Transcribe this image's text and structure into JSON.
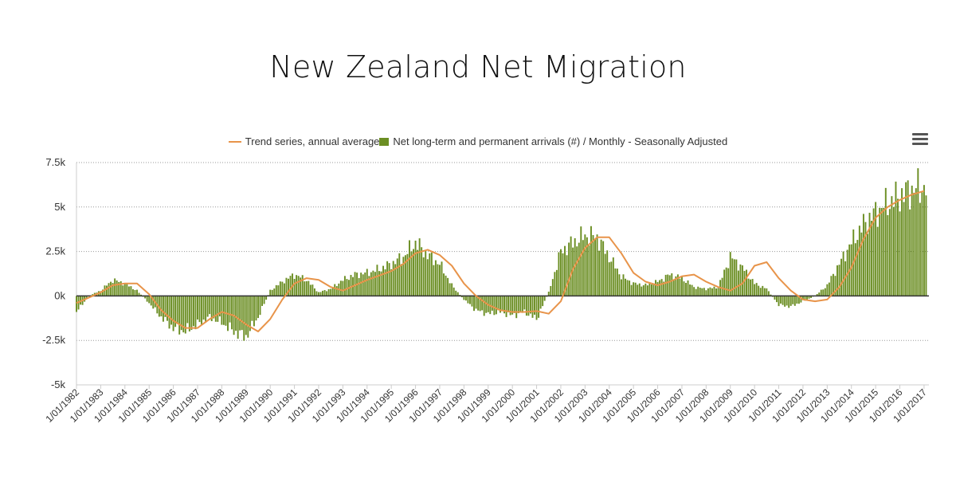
{
  "chart_data": {
    "type": "bar",
    "title": "New Zealand Net Migration",
    "legend": {
      "placement": "top-center",
      "entries": [
        {
          "name": "Trend series, annual average",
          "kind": "line",
          "color": "#e8944a"
        },
        {
          "name": "Net long-term and permanent arrivals (#) / Monthly - Seasonally Adjusted",
          "kind": "bar",
          "color": "#6b8e23"
        }
      ]
    },
    "y_axis": {
      "ylim": [
        -5000,
        7500
      ],
      "ticks": [
        -5000,
        -2500,
        0,
        2500,
        5000,
        7500
      ],
      "tick_labels": [
        "-5k",
        "-2.5k",
        "0k",
        "2.5k",
        "5k",
        "7.5k"
      ],
      "grid": true
    },
    "x_axis": {
      "tick_labels": [
        "1/01/1982",
        "1/01/1983",
        "1/01/1984",
        "1/01/1985",
        "1/01/1986",
        "1/01/1987",
        "1/01/1988",
        "1/01/1989",
        "1/01/1990",
        "1/01/1991",
        "1/01/1992",
        "1/01/1993",
        "1/01/1994",
        "1/01/1995",
        "1/01/1996",
        "1/01/1997",
        "1/01/1998",
        "1/01/1999",
        "1/01/2000",
        "1/01/2001",
        "1/01/2002",
        "1/01/2003",
        "1/01/2004",
        "1/01/2005",
        "1/01/2006",
        "1/01/2007",
        "1/01/2008",
        "1/01/2009",
        "1/01/2010",
        "1/01/2011",
        "1/01/2012",
        "1/01/2013",
        "1/01/2014",
        "1/01/2015",
        "1/01/2016",
        "1/01/2017"
      ]
    },
    "series": [
      {
        "name": "Net long-term and permanent arrivals (#) / Monthly - Seasonally Adjusted",
        "type": "bar",
        "color": "#6b8e23",
        "x": [
          "1982-01",
          "1982-07",
          "1983-01",
          "1983-07",
          "1984-01",
          "1984-07",
          "1985-01",
          "1985-07",
          "1986-01",
          "1986-07",
          "1987-01",
          "1987-07",
          "1988-01",
          "1988-07",
          "1989-01",
          "1989-07",
          "1990-01",
          "1990-07",
          "1991-01",
          "1991-07",
          "1992-01",
          "1992-07",
          "1993-01",
          "1993-07",
          "1994-01",
          "1994-07",
          "1995-01",
          "1995-07",
          "1996-01",
          "1996-07",
          "1997-01",
          "1997-07",
          "1998-01",
          "1998-07",
          "1999-01",
          "1999-07",
          "2000-01",
          "2000-07",
          "2001-01",
          "2001-07",
          "2002-01",
          "2002-07",
          "2003-01",
          "2003-07",
          "2004-01",
          "2004-07",
          "2005-01",
          "2005-07",
          "2006-01",
          "2006-07",
          "2007-01",
          "2007-07",
          "2008-01",
          "2008-07",
          "2009-01",
          "2009-07",
          "2010-01",
          "2010-07",
          "2011-01",
          "2011-07",
          "2012-01",
          "2012-07",
          "2013-01",
          "2013-07",
          "2014-01",
          "2014-07",
          "2015-01",
          "2015-07",
          "2016-01",
          "2016-07",
          "2017-01"
        ],
        "values": [
          -900,
          0,
          300,
          900,
          700,
          300,
          -400,
          -1200,
          -1800,
          -2000,
          -1600,
          -1200,
          -1500,
          -2000,
          -2300,
          -1200,
          300,
          800,
          1200,
          900,
          200,
          400,
          900,
          1200,
          1300,
          1500,
          1800,
          2200,
          3000,
          2300,
          1800,
          600,
          -200,
          -800,
          -1000,
          -900,
          -1100,
          -900,
          -1300,
          200,
          2500,
          3000,
          3400,
          3300,
          2200,
          1100,
          700,
          600,
          800,
          1200,
          1000,
          500,
          400,
          500,
          2200,
          1600,
          700,
          400,
          -500,
          -600,
          -300,
          0,
          600,
          1800,
          3000,
          4000,
          4700,
          5200,
          5600,
          6000,
          6100
        ]
      },
      {
        "name": "Trend series, annual average",
        "type": "line",
        "color": "#e8944a",
        "x": [
          "1982-01",
          "1983-01",
          "1983-07",
          "1984-01",
          "1984-07",
          "1985-01",
          "1985-07",
          "1986-01",
          "1986-07",
          "1987-01",
          "1987-07",
          "1988-01",
          "1988-07",
          "1989-01",
          "1989-07",
          "1990-01",
          "1990-07",
          "1991-01",
          "1991-07",
          "1992-01",
          "1992-07",
          "1993-01",
          "1994-01",
          "1995-01",
          "1995-07",
          "1996-01",
          "1996-07",
          "1997-01",
          "1997-07",
          "1998-01",
          "1998-07",
          "1999-01",
          "1999-07",
          "2000-01",
          "2000-07",
          "2001-01",
          "2001-07",
          "2002-01",
          "2002-07",
          "2003-01",
          "2003-07",
          "2004-01",
          "2004-07",
          "2005-01",
          "2005-07",
          "2006-01",
          "2006-07",
          "2007-01",
          "2007-07",
          "2008-01",
          "2008-07",
          "2009-01",
          "2009-07",
          "2010-01",
          "2010-07",
          "2011-01",
          "2011-07",
          "2012-01",
          "2012-07",
          "2013-01",
          "2013-07",
          "2014-01",
          "2014-07",
          "2015-01",
          "2015-07",
          "2016-01",
          "2016-07",
          "2017-01"
        ],
        "values": [
          -400,
          200,
          600,
          700,
          700,
          100,
          -800,
          -1400,
          -1800,
          -1800,
          -1300,
          -900,
          -1100,
          -1600,
          -2000,
          -1300,
          -200,
          700,
          1000,
          900,
          500,
          300,
          900,
          1400,
          1800,
          2400,
          2600,
          2300,
          1700,
          700,
          0,
          -500,
          -800,
          -900,
          -900,
          -850,
          -1000,
          -300,
          1500,
          2700,
          3300,
          3300,
          2400,
          1300,
          800,
          600,
          800,
          1100,
          1200,
          800,
          500,
          300,
          700,
          1700,
          1900,
          1000,
          300,
          -200,
          -300,
          -200,
          500,
          1600,
          3200,
          4400,
          5000,
          5400,
          5700,
          5900
        ]
      }
    ]
  },
  "menu": {
    "icon": "hamburger-menu-icon"
  }
}
